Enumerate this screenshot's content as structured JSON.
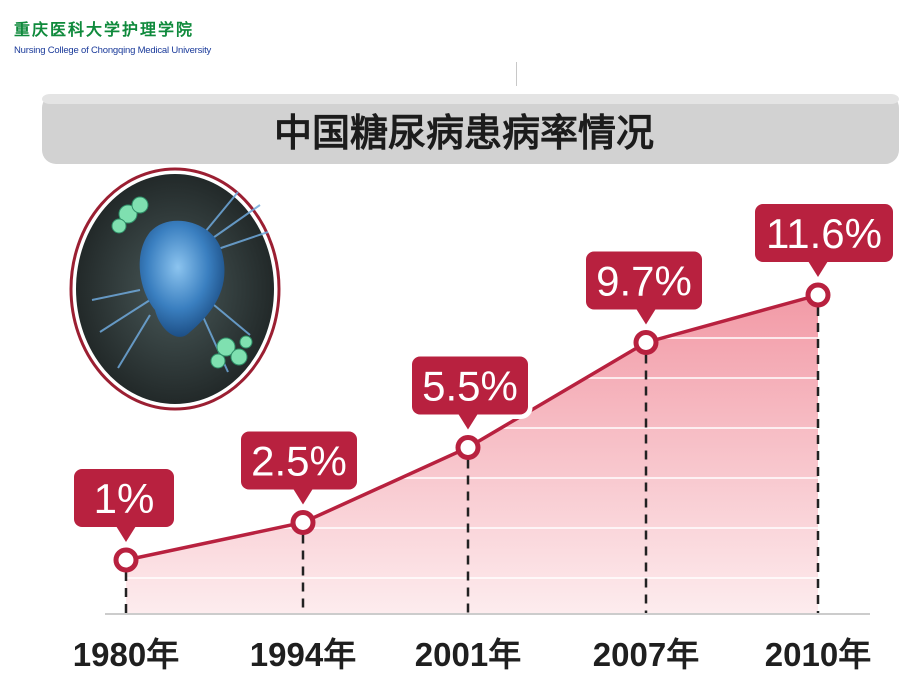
{
  "header": {
    "school_cn": "重庆医科大学护理学院",
    "school_en": "Nursing College of Chongqing Medical University"
  },
  "chart_data": {
    "type": "area",
    "title": "中国糖尿病患病率情况",
    "categories": [
      "1980年",
      "1994年",
      "2001年",
      "2007年",
      "2010年"
    ],
    "values": [
      1,
      2.5,
      5.5,
      9.7,
      11.6
    ],
    "data_labels": [
      "1%",
      "2.5%",
      "5.5%",
      "9.7%",
      "11.6%"
    ],
    "xlabel": "",
    "ylabel": "",
    "grid": true,
    "legend": "none"
  },
  "colors": {
    "line": "#b8213f",
    "label_bg": "#b8213f",
    "area_top": "#f29aa6",
    "area_bottom": "#fdecee",
    "title_bar": "#d2d2d2"
  },
  "image": {
    "icon": "cell-microscope-icon"
  }
}
